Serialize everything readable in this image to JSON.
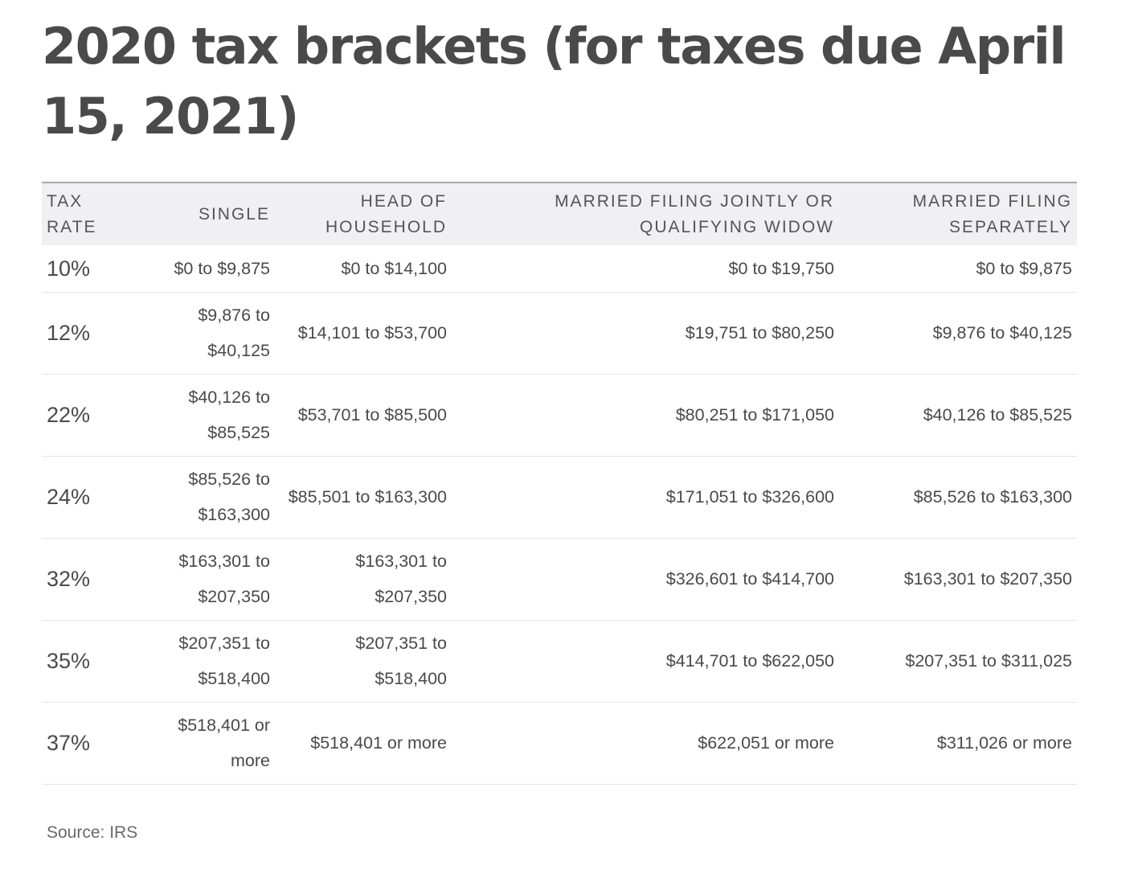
{
  "title": "2020 tax brackets (for taxes due April 15, 2021)",
  "table": {
    "headers": {
      "rate": "TAX RATE",
      "single": "SINGLE",
      "hoh": "HEAD OF HOUSEHOLD",
      "mfj": "MARRIED FILING JOINTLY OR QUALIFYING WIDOW",
      "mfs": "MARRIED FILING SEPARATELY"
    },
    "rows": [
      {
        "rate": "10%",
        "single": "$0 to $9,875",
        "hoh": "$0 to $14,100",
        "mfj": "$0 to $19,750",
        "mfs": "$0 to $9,875"
      },
      {
        "rate": "12%",
        "single": "$9,876 to $40,125",
        "hoh": "$14,101 to $53,700",
        "mfj": "$19,751 to $80,250",
        "mfs": "$9,876 to $40,125"
      },
      {
        "rate": "22%",
        "single": "$40,126 to $85,525",
        "hoh": "$53,701 to $85,500",
        "mfj": "$80,251 to $171,050",
        "mfs": "$40,126 to $85,525"
      },
      {
        "rate": "24%",
        "single": "$85,526 to $163,300",
        "hoh": "$85,501 to $163,300",
        "mfj": "$171,051 to $326,600",
        "mfs": "$85,526 to $163,300"
      },
      {
        "rate": "32%",
        "single": "$163,301 to $207,350",
        "hoh": "$163,301 to $207,350",
        "mfj": "$326,601 to $414,700",
        "mfs": "$163,301 to $207,350"
      },
      {
        "rate": "35%",
        "single": "$207,351 to $518,400",
        "hoh": "$207,351 to $518,400",
        "mfj": "$414,701 to $622,050",
        "mfs": "$207,351 to $311,025"
      },
      {
        "rate": "37%",
        "single": "$518,401 or more",
        "hoh": "$518,401 or more",
        "mfj": "$622,051 or more",
        "mfs": "$311,026 or more"
      }
    ]
  },
  "source": "Source: IRS"
}
